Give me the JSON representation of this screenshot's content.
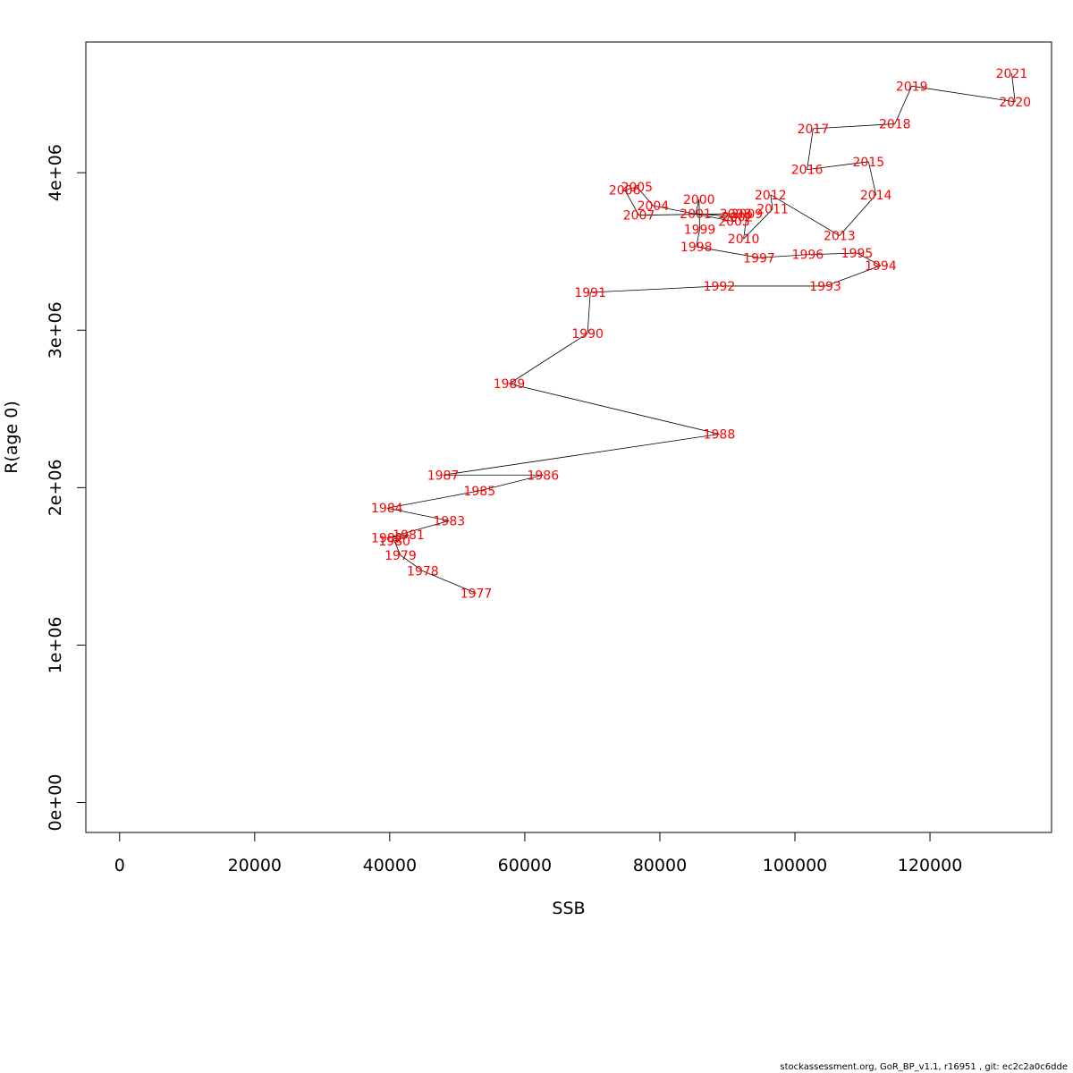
{
  "chart_data": {
    "type": "line",
    "xlabel": "SSB",
    "ylabel": "R(age 0)",
    "xlim": [
      -5000,
      138000
    ],
    "ylim": [
      -190000,
      4830000
    ],
    "x_ticks": [
      0,
      20000,
      40000,
      60000,
      80000,
      100000,
      120000
    ],
    "x_tick_labels": [
      "0",
      "20000",
      "40000",
      "60000",
      "80000",
      "100000",
      "120000"
    ],
    "y_ticks": [
      0,
      1000000,
      2000000,
      3000000,
      4000000
    ],
    "y_tick_labels": [
      "0e+00",
      "1e+06",
      "2e+06",
      "3e+06",
      "4e+06"
    ],
    "grid": false,
    "line_color": "#000000",
    "label_color": "#ff0000",
    "points": [
      {
        "year": "1977",
        "ssb": 52800,
        "r": 1330000
      },
      {
        "year": "1978",
        "ssb": 44900,
        "r": 1470000
      },
      {
        "year": "1979",
        "ssb": 41600,
        "r": 1570000
      },
      {
        "year": "1980",
        "ssb": 40700,
        "r": 1660000
      },
      {
        "year": "1981",
        "ssb": 42800,
        "r": 1700000
      },
      {
        "year": "1982",
        "ssb": 39600,
        "r": 1680000
      },
      {
        "year": "1983",
        "ssb": 48800,
        "r": 1790000
      },
      {
        "year": "1984",
        "ssb": 39600,
        "r": 1870000
      },
      {
        "year": "1985",
        "ssb": 53300,
        "r": 1980000
      },
      {
        "year": "1986",
        "ssb": 62700,
        "r": 2080000
      },
      {
        "year": "1987",
        "ssb": 47900,
        "r": 2080000
      },
      {
        "year": "1988",
        "ssb": 88800,
        "r": 2340000
      },
      {
        "year": "1989",
        "ssb": 57700,
        "r": 2660000
      },
      {
        "year": "1990",
        "ssb": 69300,
        "r": 2980000
      },
      {
        "year": "1991",
        "ssb": 69700,
        "r": 3240000
      },
      {
        "year": "1992",
        "ssb": 88800,
        "r": 3280000
      },
      {
        "year": "1993",
        "ssb": 104500,
        "r": 3280000
      },
      {
        "year": "1994",
        "ssb": 112700,
        "r": 3410000
      },
      {
        "year": "1995",
        "ssb": 109200,
        "r": 3490000
      },
      {
        "year": "1996",
        "ssb": 101900,
        "r": 3480000
      },
      {
        "year": "1997",
        "ssb": 94700,
        "r": 3460000
      },
      {
        "year": "1998",
        "ssb": 85400,
        "r": 3530000
      },
      {
        "year": "1999",
        "ssb": 85900,
        "r": 3640000
      },
      {
        "year": "2000",
        "ssb": 85800,
        "r": 3830000
      },
      {
        "year": "2001",
        "ssb": 85300,
        "r": 3740000
      },
      {
        "year": "2002",
        "ssb": 91500,
        "r": 3720000
      },
      {
        "year": "2003",
        "ssb": 91000,
        "r": 3690000
      },
      {
        "year": "2004",
        "ssb": 79000,
        "r": 3790000
      },
      {
        "year": "2005",
        "ssb": 76600,
        "r": 3910000
      },
      {
        "year": "2006",
        "ssb": 74800,
        "r": 3890000
      },
      {
        "year": "2007",
        "ssb": 76900,
        "r": 3730000
      },
      {
        "year": "2008",
        "ssb": 91200,
        "r": 3740000
      },
      {
        "year": "2009",
        "ssb": 92900,
        "r": 3740000
      },
      {
        "year": "2010",
        "ssb": 92400,
        "r": 3580000
      },
      {
        "year": "2011",
        "ssb": 96700,
        "r": 3770000
      },
      {
        "year": "2012",
        "ssb": 96400,
        "r": 3860000
      },
      {
        "year": "2013",
        "ssb": 106600,
        "r": 3600000
      },
      {
        "year": "2014",
        "ssb": 112000,
        "r": 3860000
      },
      {
        "year": "2015",
        "ssb": 110900,
        "r": 4070000
      },
      {
        "year": "2016",
        "ssb": 101800,
        "r": 4020000
      },
      {
        "year": "2017",
        "ssb": 102700,
        "r": 4280000
      },
      {
        "year": "2018",
        "ssb": 114800,
        "r": 4310000
      },
      {
        "year": "2019",
        "ssb": 117300,
        "r": 4550000
      },
      {
        "year": "2020",
        "ssb": 132600,
        "r": 4450000
      },
      {
        "year": "2021",
        "ssb": 132100,
        "r": 4630000
      }
    ]
  },
  "footer": "stockassessment.org, GoR_BP_v1.1, r16951 , git: ec2c2a0c6dde"
}
